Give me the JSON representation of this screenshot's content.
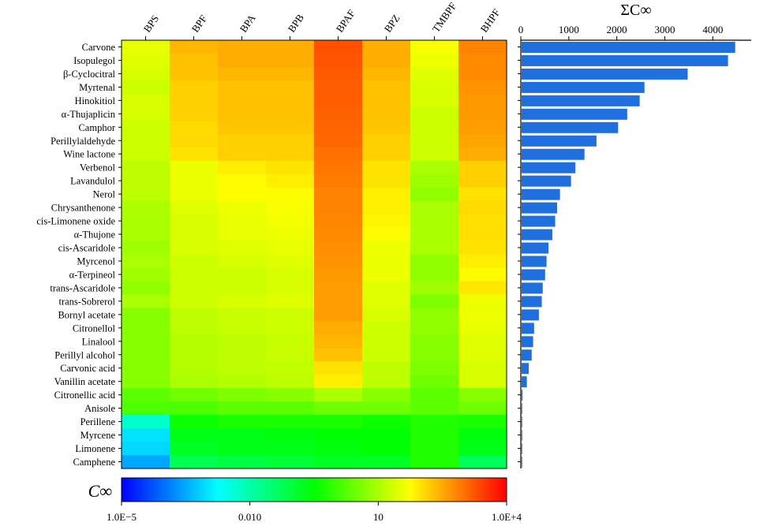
{
  "chart_data": [
    {
      "type": "heatmap",
      "columns": [
        "BPS",
        "BPF",
        "BPA",
        "BPB",
        "BPAF",
        "BPZ",
        "TMBPF",
        "BHPF"
      ],
      "rows": [
        "Carvone",
        "Isopulegol",
        "β-Cyclocitral",
        "Myrtenal",
        "Hinokitiol",
        "α-Thujaplicin",
        "Camphor",
        "Perillylaldehyde",
        "Wine lactone",
        "Verbenol",
        "Lavandulol",
        "Nerol",
        "Chrysanthenone",
        "cis-Limonene oxide",
        "α-Thujone",
        "cis-Ascaridole",
        "Myrcenol",
        "α-Terpineol",
        "trans-Ascaridole",
        "trans-Sobrerol",
        "Bornyl acetate",
        "Citronellol",
        "Linalool",
        "Perillyl alcohol",
        "Carvonic acid",
        "Vanillin acetate",
        "Citronellic acid",
        "Anisole",
        "Perillene",
        "Myrcene",
        "Limonene",
        "Camphene"
      ],
      "color_scale": "log10",
      "value_range": [
        1e-05,
        10000
      ],
      "colorbar_label": "C∞",
      "colorbar_ticks": [
        "1.0E−5",
        "0.010",
        "10",
        "1.0E+4"
      ],
      "colorbar_tick_values": [
        1e-05,
        0.01,
        10,
        10000
      ],
      "colormap": [
        "#0000ff",
        "#00ffff",
        "#00ff00",
        "#ffff00",
        "#ff0000"
      ],
      "values": [
        [
          35,
          250,
          300,
          300,
          2000,
          300,
          50,
          700
        ],
        [
          30,
          200,
          300,
          300,
          1800,
          300,
          40,
          600
        ],
        [
          25,
          200,
          250,
          250,
          1600,
          250,
          30,
          600
        ],
        [
          20,
          150,
          200,
          200,
          1500,
          200,
          25,
          500
        ],
        [
          25,
          150,
          200,
          200,
          1500,
          200,
          25,
          450
        ],
        [
          25,
          150,
          200,
          200,
          1400,
          200,
          20,
          450
        ],
        [
          20,
          120,
          180,
          180,
          1300,
          180,
          20,
          400
        ],
        [
          20,
          120,
          150,
          150,
          1200,
          150,
          20,
          350
        ],
        [
          20,
          100,
          150,
          150,
          1000,
          150,
          20,
          300
        ],
        [
          15,
          40,
          80,
          100,
          900,
          100,
          10,
          150
        ],
        [
          15,
          40,
          60,
          80,
          800,
          100,
          8,
          150
        ],
        [
          15,
          40,
          60,
          60,
          700,
          80,
          6,
          100
        ],
        [
          10,
          30,
          40,
          50,
          700,
          80,
          10,
          120
        ],
        [
          10,
          25,
          35,
          45,
          650,
          70,
          10,
          110
        ],
        [
          10,
          25,
          35,
          40,
          600,
          60,
          10,
          110
        ],
        [
          8,
          25,
          30,
          35,
          550,
          40,
          10,
          100
        ],
        [
          10,
          20,
          25,
          30,
          500,
          40,
          6,
          80
        ],
        [
          8,
          20,
          20,
          25,
          450,
          40,
          6,
          60
        ],
        [
          6,
          20,
          20,
          25,
          420,
          30,
          8,
          90
        ],
        [
          10,
          20,
          25,
          30,
          400,
          30,
          4,
          40
        ],
        [
          5,
          15,
          18,
          20,
          400,
          25,
          6,
          40
        ],
        [
          5,
          15,
          18,
          20,
          300,
          20,
          6,
          35
        ],
        [
          5,
          12,
          15,
          18,
          250,
          20,
          5,
          30
        ],
        [
          5,
          12,
          15,
          18,
          200,
          20,
          5,
          30
        ],
        [
          5,
          12,
          15,
          16,
          100,
          15,
          4,
          25
        ],
        [
          5,
          10,
          12,
          15,
          80,
          15,
          3,
          25
        ],
        [
          2,
          3,
          4,
          5,
          10,
          5,
          2,
          5
        ],
        [
          1.5,
          1.5,
          2,
          2,
          3,
          3,
          2,
          3
        ],
        [
          0.005,
          0.4,
          0.5,
          0.5,
          0.5,
          0.4,
          0.6,
          0.5
        ],
        [
          0.001,
          0.2,
          0.2,
          0.25,
          0.3,
          0.3,
          0.6,
          0.25
        ],
        [
          0.0008,
          0.15,
          0.2,
          0.2,
          0.25,
          0.3,
          0.6,
          0.2
        ],
        [
          0.0003,
          0.06,
          0.08,
          0.1,
          0.15,
          0.15,
          0.6,
          0.05
        ]
      ]
    },
    {
      "type": "bar",
      "orientation": "horizontal",
      "title": "ΣC∞",
      "categories": [
        "Carvone",
        "Isopulegol",
        "β-Cyclocitral",
        "Myrtenal",
        "Hinokitiol",
        "α-Thujaplicin",
        "Camphor",
        "Perillylaldehyde",
        "Wine lactone",
        "Verbenol",
        "Lavandulol",
        "Nerol",
        "Chrysanthenone",
        "cis-Limonene oxide",
        "α-Thujone",
        "cis-Ascaridole",
        "Myrcenol",
        "α-Terpineol",
        "trans-Ascaridole",
        "trans-Sobrerol",
        "Bornyl acetate",
        "Citronellol",
        "Linalool",
        "Perillyl alcohol",
        "Carvonic acid",
        "Vanillin acetate",
        "Citronellic acid",
        "Anisole",
        "Perillene",
        "Myrcene",
        "Limonene",
        "Camphene"
      ],
      "values": [
        4450,
        4300,
        3460,
        2560,
        2460,
        2200,
        2010,
        1560,
        1310,
        1120,
        1030,
        800,
        740,
        700,
        640,
        560,
        520,
        490,
        440,
        420,
        360,
        260,
        240,
        210,
        150,
        110,
        20,
        10,
        3,
        2,
        1.5,
        1
      ],
      "xticks": [
        0,
        1000,
        2000,
        3000,
        4000
      ],
      "xlim": [
        0,
        4800
      ],
      "color": "#1f6fde"
    }
  ]
}
